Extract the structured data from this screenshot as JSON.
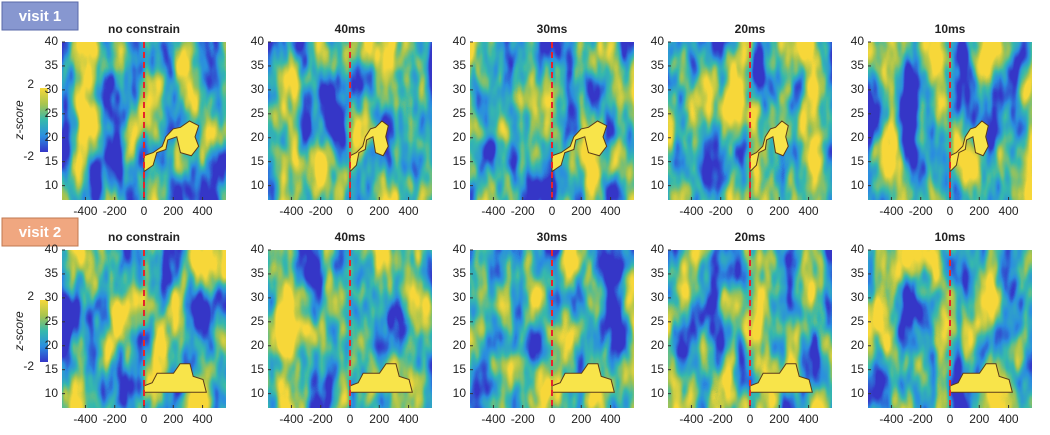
{
  "panel_labels": [
    "visit 1",
    "visit 2"
  ],
  "colorbar": {
    "label": "z-score",
    "lim": [
      -2,
      2
    ],
    "ticks": [
      -2,
      2
    ],
    "colors": [
      "#3536c8",
      "#2a8ee0",
      "#36b9ac",
      "#a8c44e",
      "#f7d83a"
    ]
  },
  "chart_data": [
    {
      "type": "heatmap",
      "title": "no constrain",
      "xlim": [
        -560,
        560
      ],
      "ylim": [
        7,
        40
      ],
      "xticks": [
        -400,
        -200,
        0,
        200,
        400
      ],
      "yticks": [
        10,
        15,
        20,
        25,
        30,
        35,
        40
      ],
      "reference_line": {
        "x": 0,
        "color": "#e8232a"
      }
    },
    {
      "type": "heatmap",
      "title": "40ms",
      "xlim": [
        -560,
        560
      ],
      "ylim": [
        7,
        40
      ],
      "xticks": [
        -400,
        -200,
        0,
        200,
        400
      ],
      "yticks": [
        10,
        15,
        20,
        25,
        30,
        35,
        40
      ],
      "reference_line": {
        "x": 0,
        "color": "#e8232a"
      }
    },
    {
      "type": "heatmap",
      "title": "30ms",
      "xlim": [
        -560,
        560
      ],
      "ylim": [
        7,
        40
      ],
      "xticks": [
        -400,
        -200,
        0,
        200,
        400
      ],
      "yticks": [
        10,
        15,
        20,
        25,
        30,
        35,
        40
      ],
      "reference_line": {
        "x": 0,
        "color": "#e8232a"
      }
    },
    {
      "type": "heatmap",
      "title": "20ms",
      "xlim": [
        -560,
        560
      ],
      "ylim": [
        7,
        40
      ],
      "xticks": [
        -400,
        -200,
        0,
        200,
        400
      ],
      "yticks": [
        10,
        15,
        20,
        25,
        30,
        35,
        40
      ],
      "reference_line": {
        "x": 0,
        "color": "#e8232a"
      }
    },
    {
      "type": "heatmap",
      "title": "10ms",
      "xlim": [
        -560,
        560
      ],
      "ylim": [
        7,
        40
      ],
      "xticks": [
        -400,
        -200,
        0,
        200,
        400
      ],
      "yticks": [
        10,
        15,
        20,
        25,
        30,
        35,
        40
      ],
      "reference_line": {
        "x": 0,
        "color": "#e8232a"
      }
    },
    {
      "type": "heatmap",
      "title": "no constrain",
      "xlim": [
        -560,
        560
      ],
      "ylim": [
        7,
        40
      ],
      "xticks": [
        -400,
        -200,
        0,
        200,
        400
      ],
      "yticks": [
        10,
        15,
        20,
        25,
        30,
        35,
        40
      ],
      "reference_line": {
        "x": 0,
        "color": "#e8232a"
      }
    },
    {
      "type": "heatmap",
      "title": "40ms",
      "xlim": [
        -560,
        560
      ],
      "ylim": [
        7,
        40
      ],
      "xticks": [
        -400,
        -200,
        0,
        200,
        400
      ],
      "yticks": [
        10,
        15,
        20,
        25,
        30,
        35,
        40
      ],
      "reference_line": {
        "x": 0,
        "color": "#e8232a"
      }
    },
    {
      "type": "heatmap",
      "title": "30ms",
      "xlim": [
        -560,
        560
      ],
      "ylim": [
        7,
        40
      ],
      "xticks": [
        -400,
        -200,
        0,
        200,
        400
      ],
      "yticks": [
        10,
        15,
        20,
        25,
        30,
        35,
        40
      ],
      "reference_line": {
        "x": 0,
        "color": "#e8232a"
      }
    },
    {
      "type": "heatmap",
      "title": "20ms",
      "xlim": [
        -560,
        560
      ],
      "ylim": [
        7,
        40
      ],
      "xticks": [
        -400,
        -200,
        0,
        200,
        400
      ],
      "yticks": [
        10,
        15,
        20,
        25,
        30,
        35,
        40
      ],
      "reference_line": {
        "x": 0,
        "color": "#e8232a"
      }
    },
    {
      "type": "heatmap",
      "title": "10ms",
      "xlim": [
        -560,
        560
      ],
      "ylim": [
        7,
        40
      ],
      "xticks": [
        -400,
        -200,
        0,
        200,
        400
      ],
      "yticks": [
        10,
        15,
        20,
        25,
        30,
        35,
        40
      ],
      "reference_line": {
        "x": 0,
        "color": "#e8232a"
      }
    }
  ]
}
